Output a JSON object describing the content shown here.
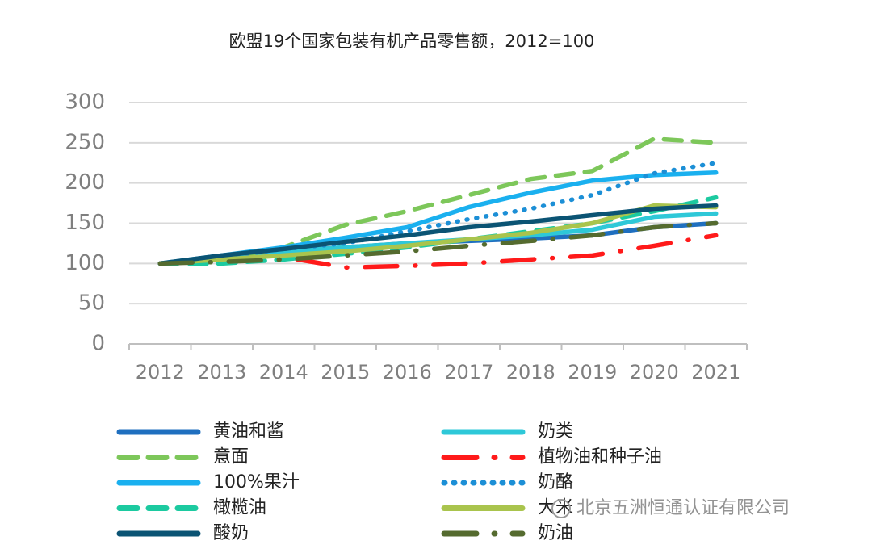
{
  "chart_data": {
    "type": "line",
    "title": "欧盟19个国家包装有机产品零售额，2012=100",
    "categories": [
      "2012",
      "2013",
      "2014",
      "2015",
      "2016",
      "2017",
      "2018",
      "2019",
      "2020",
      "2021"
    ],
    "ylim": [
      0,
      300
    ],
    "yticks": [
      0,
      50,
      100,
      150,
      200,
      250,
      300
    ],
    "grid": true,
    "series": [
      {
        "name": "黄油和酱",
        "color": "#1f6fbf",
        "style": "solid",
        "values": [
          100,
          108,
          115,
          120,
          125,
          128,
          131,
          135,
          145,
          150
        ]
      },
      {
        "name": "奶类",
        "color": "#2ec8d8",
        "style": "solid",
        "values": [
          100,
          108,
          115,
          120,
          125,
          130,
          135,
          142,
          158,
          162
        ]
      },
      {
        "name": "意面",
        "color": "#7dc75a",
        "style": "dashed",
        "values": [
          100,
          105,
          120,
          148,
          165,
          185,
          205,
          215,
          255,
          250
        ]
      },
      {
        "name": "植物油和种子油",
        "color": "#ff1a1a",
        "style": "dashdot",
        "values": [
          100,
          105,
          108,
          95,
          97,
          100,
          105,
          110,
          122,
          135
        ]
      },
      {
        "name": "100%果汁",
        "color": "#1ab0ef",
        "style": "solid",
        "values": [
          100,
          110,
          120,
          132,
          145,
          170,
          188,
          203,
          210,
          213
        ]
      },
      {
        "name": "奶酪",
        "color": "#1c8fd6",
        "style": "dotted",
        "values": [
          100,
          108,
          118,
          125,
          140,
          155,
          168,
          185,
          212,
          225
        ]
      },
      {
        "name": "橄榄油",
        "color": "#1ccaa0",
        "style": "dashed",
        "values": [
          100,
          100,
          105,
          112,
          120,
          130,
          140,
          150,
          165,
          182
        ]
      },
      {
        "name": "大米",
        "color": "#a9c44d",
        "style": "solid",
        "values": [
          100,
          105,
          110,
          115,
          122,
          130,
          138,
          150,
          172,
          170
        ]
      },
      {
        "name": "酸奶",
        "color": "#0b5474",
        "style": "solid",
        "values": [
          100,
          110,
          118,
          127,
          135,
          145,
          152,
          160,
          168,
          172
        ]
      },
      {
        "name": "奶油",
        "color": "#556b2f",
        "style": "dashdot",
        "values": [
          100,
          102,
          105,
          110,
          115,
          122,
          128,
          135,
          145,
          150
        ]
      }
    ]
  },
  "watermark": "北京五洲恒通认证有限公司"
}
